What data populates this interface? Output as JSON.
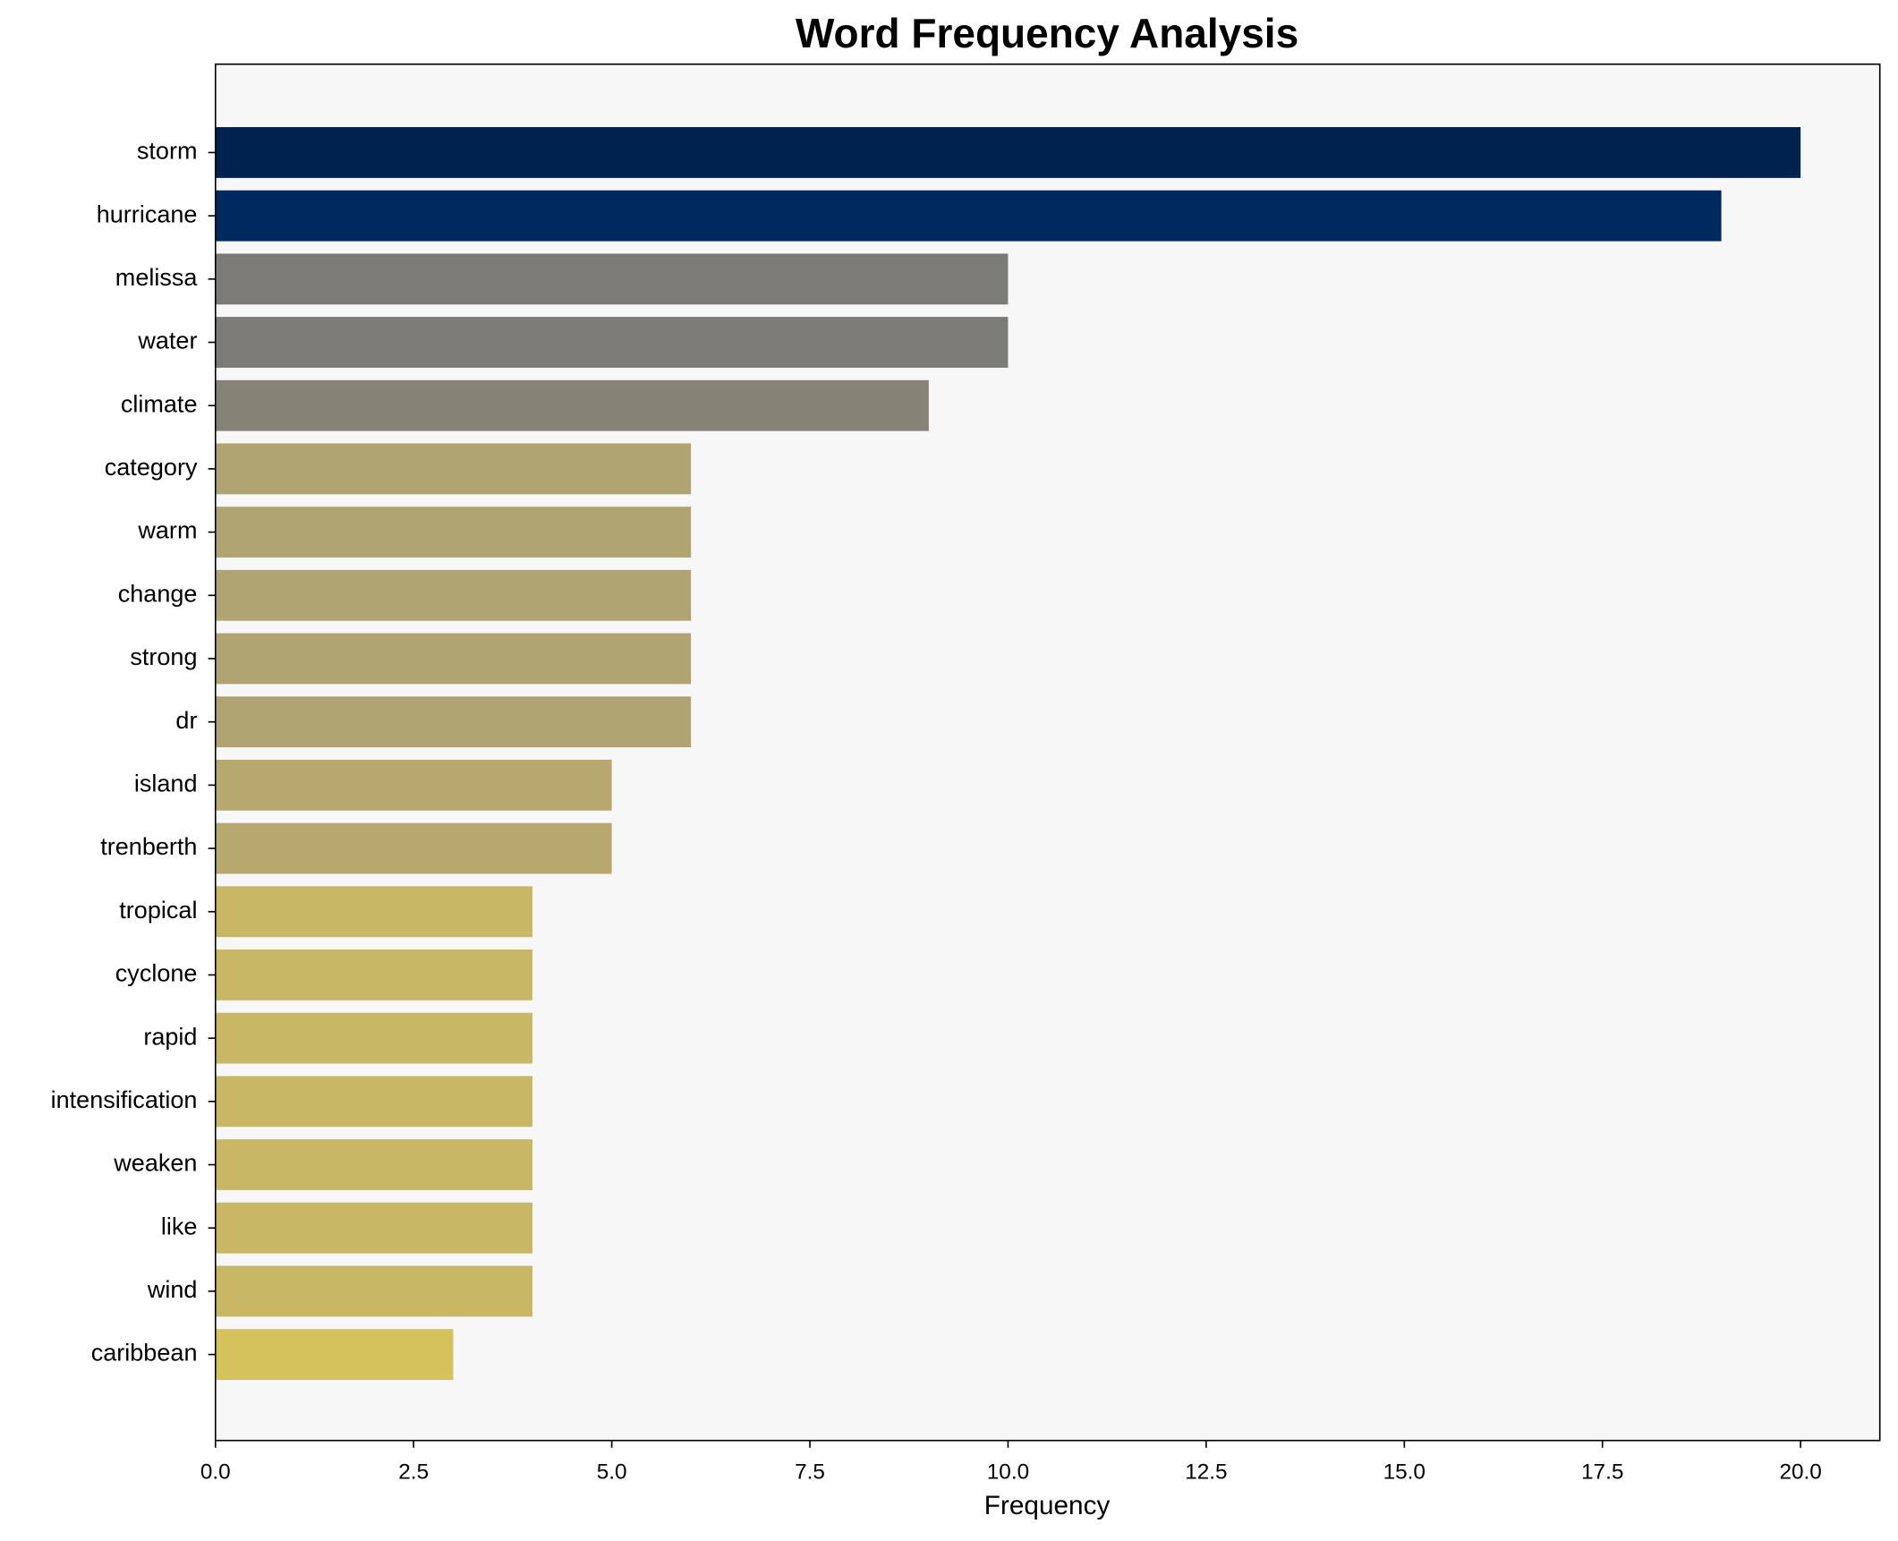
{
  "chart_data": {
    "type": "barh",
    "title": "Word Frequency Analysis",
    "x_label": "Frequency",
    "categories": [
      "storm",
      "hurricane",
      "melissa",
      "water",
      "climate",
      "category",
      "warm",
      "change",
      "strong",
      "dr",
      "island",
      "trenberth",
      "tropical",
      "cyclone",
      "rapid",
      "intensification",
      "weaken",
      "like",
      "wind",
      "caribbean"
    ],
    "values": [
      20,
      19,
      10,
      10,
      9,
      6,
      6,
      6,
      6,
      6,
      5,
      5,
      4,
      4,
      4,
      4,
      4,
      4,
      4,
      3
    ],
    "colors": [
      "#00224e",
      "#00295f",
      "#7c7b78",
      "#7c7b78",
      "#878276",
      "#b0a572",
      "#b0a572",
      "#b0a572",
      "#b0a572",
      "#b0a572",
      "#b7a96e",
      "#b7a96e",
      "#c8b866",
      "#c8b866",
      "#c8b866",
      "#c8b866",
      "#c8b866",
      "#c8b866",
      "#c8b866",
      "#d5c25d"
    ],
    "xlim": [
      0,
      21
    ],
    "xticks": [
      {
        "value": 0,
        "label": "0.0"
      },
      2.5,
      {
        "value": 5,
        "label": "5.0"
      },
      7.5,
      {
        "value": 10,
        "label": "10.0"
      },
      12.5,
      {
        "value": 15,
        "label": "15.0"
      },
      17.5,
      {
        "value": 20,
        "label": "20.0"
      }
    ],
    "grid": false
  }
}
